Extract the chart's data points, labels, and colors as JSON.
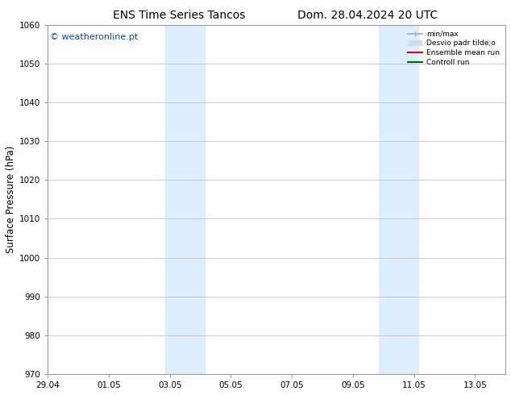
{
  "title_left": "ENS Time Series Tancos",
  "title_right": "Dom. 28.04.2024 20 UTC",
  "ylabel": "Surface Pressure (hPa)",
  "ylim": [
    970,
    1060
  ],
  "yticks": [
    970,
    980,
    990,
    1000,
    1010,
    1020,
    1030,
    1040,
    1050,
    1060
  ],
  "xtick_labels": [
    "29.04",
    "01.05",
    "03.05",
    "05.05",
    "07.05",
    "09.05",
    "11.05",
    "13.05"
  ],
  "xtick_positions": [
    0,
    2,
    4,
    6,
    8,
    10,
    12,
    14
  ],
  "xlim": [
    0,
    15
  ],
  "shaded_bands": [
    {
      "x_start": 3.85,
      "x_end": 5.15
    },
    {
      "x_start": 10.85,
      "x_end": 12.15
    }
  ],
  "shaded_color": "#ddeeff",
  "watermark_text": "© weatheronline.pt",
  "watermark_color": "#0044cc",
  "background_color": "#ffffff",
  "plot_background": "#ffffff",
  "legend_entries": [
    {
      "label": "min/max",
      "color": "#aaaaaa",
      "lw": 1.2
    },
    {
      "label": "Desvio padr tilde;o",
      "color": "#ccddee",
      "lw": 5
    },
    {
      "label": "Ensemble mean run",
      "color": "#dd0000",
      "lw": 1.5
    },
    {
      "label": "Controll run",
      "color": "#006600",
      "lw": 1.5
    }
  ],
  "grid_color": "#bbbbbb",
  "spine_color": "#999999",
  "title_fontsize": 10,
  "tick_fontsize": 7.5,
  "ylabel_fontsize": 8.5,
  "watermark_fontsize": 8
}
